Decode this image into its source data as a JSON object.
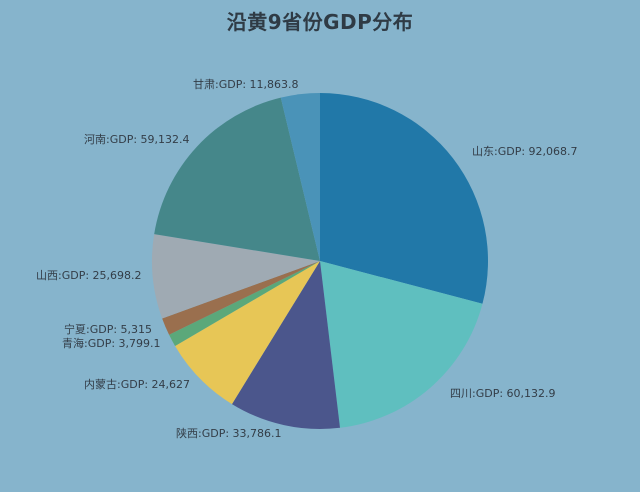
{
  "chart_data": {
    "type": "pie",
    "title": "沿黄9省份GDP分布",
    "label_separator": ":GDP: ",
    "slices": [
      {
        "name": "山东",
        "value": 92068.7,
        "value_label": "92,068.7",
        "color": "#2178a8"
      },
      {
        "name": "四川",
        "value": 60132.9,
        "value_label": "60,132.9",
        "color": "#5fbfbf"
      },
      {
        "name": "陕西",
        "value": 33786.1,
        "value_label": "33,786.1",
        "color": "#4b568c"
      },
      {
        "name": "内蒙古",
        "value": 24627,
        "value_label": "24,627",
        "color": "#e7c656"
      },
      {
        "name": "青海",
        "value": 3799.1,
        "value_label": "3,799.1",
        "color": "#5ba87a"
      },
      {
        "name": "宁夏",
        "value": 5315,
        "value_label": "5,315",
        "color": "#9a6f4e"
      },
      {
        "name": "山西",
        "value": 25698.2,
        "value_label": "25,698.2",
        "color": "#9faab3"
      },
      {
        "name": "河南",
        "value": 59132.4,
        "value_label": "59,132.4",
        "color": "#45878a"
      },
      {
        "name": "甘肃",
        "value": 11863.8,
        "value_label": "11,863.8",
        "color": "#4a93b8"
      }
    ]
  }
}
